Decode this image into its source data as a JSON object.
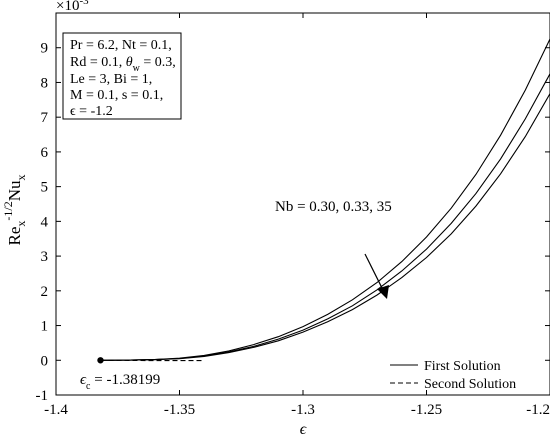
{
  "chart_data": {
    "type": "line",
    "xlabel": "ϵ",
    "ylabel_main": "Re",
    "ylabel_sub": "x",
    "ylabel_sup": "-1/2",
    "ylabel_main2": "Nu",
    "ylabel_sub2": "x",
    "y_multiplier": {
      "base": "×10",
      "exp": "-3"
    },
    "xlim": [
      -1.4,
      -1.2
    ],
    "ylim": [
      -1,
      10
    ],
    "x_ticks": [
      {
        "v": -1.4,
        "label": "-1.4"
      },
      {
        "v": -1.35,
        "label": "-1.35"
      },
      {
        "v": -1.3,
        "label": "-1.3"
      },
      {
        "v": -1.25,
        "label": "-1.25"
      },
      {
        "v": -1.2,
        "label": "-1.2"
      }
    ],
    "y_ticks": [
      {
        "v": -1,
        "label": "-1"
      },
      {
        "v": 0,
        "label": "0"
      },
      {
        "v": 1,
        "label": "1"
      },
      {
        "v": 2,
        "label": "2"
      },
      {
        "v": 3,
        "label": "3"
      },
      {
        "v": 4,
        "label": "4"
      },
      {
        "v": 5,
        "label": "5"
      },
      {
        "v": 6,
        "label": "6"
      },
      {
        "v": 7,
        "label": "7"
      },
      {
        "v": 8,
        "label": "8"
      },
      {
        "v": 9,
        "label": "9"
      }
    ],
    "params": [
      {
        "key": "pr-nt",
        "text": "Pr = 6.2, Nt = 0.1,"
      },
      {
        "key": "rd-theta",
        "pre": "Rd = 0.1, ",
        "sym": "θ",
        "sub": "w",
        "post": " = 0.3,"
      },
      {
        "key": "le-bi",
        "text": "Le = 3, Bi = 1,"
      },
      {
        "key": "m-s",
        "text": "M = 0.1, s = 0.1,"
      },
      {
        "key": "eps",
        "text": "ϵ = -1.2"
      }
    ],
    "annotation": "Nb = 0.30, 0.33, 35",
    "critical_label": {
      "sym": "ϵ",
      "sub": "c",
      "value": " = -1.38199"
    },
    "critical_point": {
      "x": -1.38199,
      "y": 0.0
    },
    "legend": {
      "position": "bottom-right",
      "entries": [
        {
          "label": "First Solution",
          "style": "solid"
        },
        {
          "label": "Second Solution",
          "style": "dashed"
        }
      ]
    },
    "series": [
      {
        "style": "solid",
        "x": [
          -1.382,
          -1.37,
          -1.36,
          -1.35,
          -1.34,
          -1.33,
          -1.32,
          -1.31,
          -1.3,
          -1.29,
          -1.28,
          -1.27,
          -1.26,
          -1.25,
          -1.24,
          -1.23,
          -1.22,
          -1.21,
          -1.2
        ],
        "y": [
          0.0,
          0.005,
          0.02,
          0.06,
          0.14,
          0.27,
          0.45,
          0.68,
          0.97,
          1.32,
          1.74,
          2.24,
          2.84,
          3.55,
          4.38,
          5.35,
          6.48,
          7.78,
          9.25
        ]
      },
      {
        "style": "solid",
        "x": [
          -1.382,
          -1.37,
          -1.36,
          -1.35,
          -1.34,
          -1.33,
          -1.32,
          -1.31,
          -1.3,
          -1.29,
          -1.28,
          -1.27,
          -1.26,
          -1.25,
          -1.24,
          -1.23,
          -1.22,
          -1.21,
          -1.2
        ],
        "y": [
          0.0,
          0.005,
          0.02,
          0.05,
          0.12,
          0.24,
          0.4,
          0.61,
          0.87,
          1.19,
          1.57,
          2.03,
          2.57,
          3.2,
          3.94,
          4.8,
          5.8,
          6.95,
          8.25
        ]
      },
      {
        "style": "solid",
        "x": [
          -1.382,
          -1.37,
          -1.36,
          -1.35,
          -1.34,
          -1.33,
          -1.32,
          -1.31,
          -1.3,
          -1.29,
          -1.28,
          -1.27,
          -1.26,
          -1.25,
          -1.24,
          -1.23,
          -1.22,
          -1.21,
          -1.2
        ],
        "y": [
          0.0,
          0.004,
          0.018,
          0.045,
          0.11,
          0.22,
          0.37,
          0.56,
          0.81,
          1.11,
          1.46,
          1.88,
          2.38,
          2.96,
          3.64,
          4.44,
          5.37,
          6.44,
          7.68
        ]
      },
      {
        "style": "dashed",
        "x": [
          -1.382,
          -1.37,
          -1.36,
          -1.35,
          -1.34
        ],
        "y": [
          0.0,
          -0.005,
          -0.01,
          -0.01,
          -0.01
        ]
      }
    ]
  }
}
